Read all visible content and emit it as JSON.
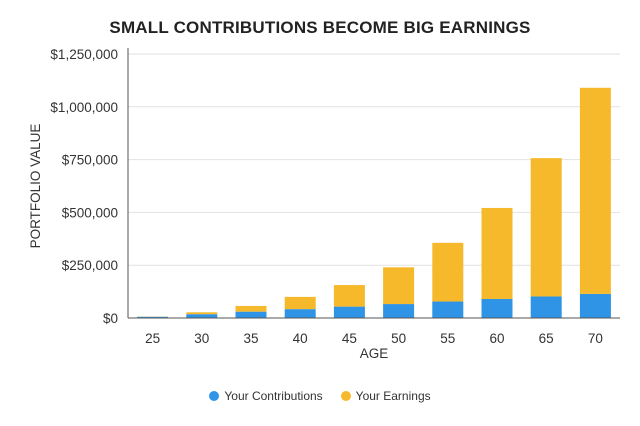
{
  "chart_data": {
    "type": "bar",
    "stacked": true,
    "title": "SMALL CONTRIBUTIONS BECOME BIG EARNINGS",
    "xlabel": "AGE",
    "ylabel": "PORTFOLIO VALUE",
    "categories": [
      "25",
      "30",
      "35",
      "40",
      "45",
      "50",
      "55",
      "60",
      "65",
      "70"
    ],
    "ylim": [
      0,
      1250000
    ],
    "yticks": [
      0,
      250000,
      500000,
      750000,
      1000000,
      1250000
    ],
    "ytick_labels": [
      "$0",
      "$250,000",
      "$500,000",
      "$750,000",
      "$1,000,000",
      "$1,250,000"
    ],
    "grid": true,
    "legend_position": "bottom",
    "series": [
      {
        "name": "Your Contributions",
        "color": "#2F93E6",
        "values": [
          6000,
          18000,
          30000,
          42000,
          54000,
          66000,
          78000,
          90000,
          102000,
          114000
        ]
      },
      {
        "name": "Your Earnings",
        "color": "#F6B92B",
        "values": [
          1000,
          9000,
          27000,
          58000,
          102000,
          174000,
          278000,
          431000,
          655000,
          976000
        ]
      }
    ]
  }
}
